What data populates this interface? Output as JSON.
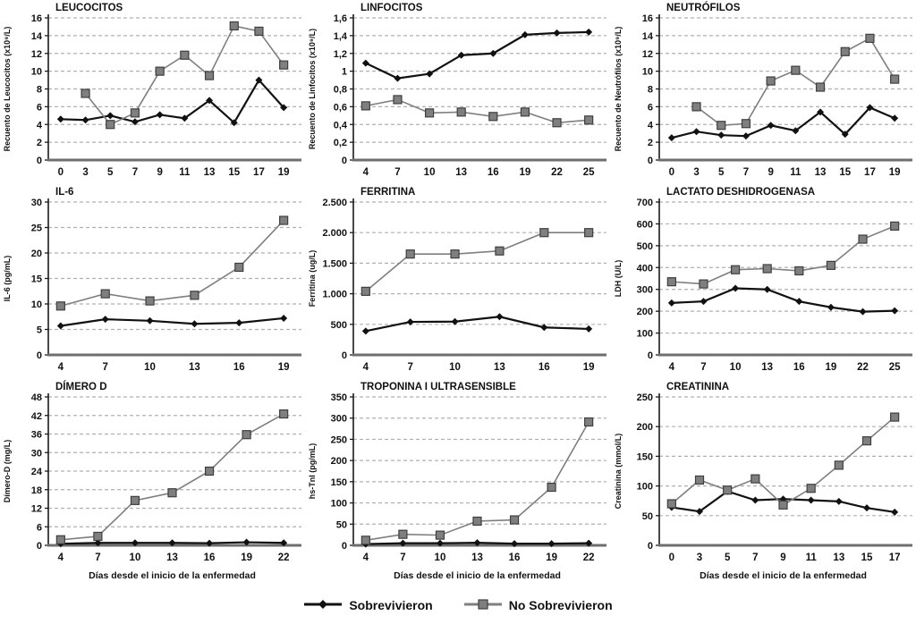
{
  "colors": {
    "survivor": "#111111",
    "nonsurvivor": "#7f7f7f",
    "nonsurvivor_edge": "#3f3f3f",
    "grid": "#b0b0b0",
    "axis": "#1a1a1a",
    "xaxis": "#6e6e6e",
    "text": "#111111"
  },
  "legend": {
    "items": [
      {
        "label": "Sobrevivieron",
        "marker": "diamond"
      },
      {
        "label": "No Sobrevivieron",
        "marker": "square"
      }
    ]
  },
  "chart_data": [
    {
      "id": "leucocitos",
      "type": "line",
      "title": "LEUCOCITOS",
      "ylabel": "Recuento de Leucocitos (x10⁹/L)",
      "xlabel": "",
      "categories": [
        "0",
        "3",
        "5",
        "7",
        "9",
        "11",
        "13",
        "15",
        "17",
        "19"
      ],
      "ylim": [
        0,
        16
      ],
      "yticks": [
        0,
        2,
        4,
        6,
        8,
        10,
        12,
        14,
        16
      ],
      "ytick_labels": [
        "0",
        "2",
        "4",
        "6",
        "8",
        "10",
        "12",
        "14",
        "16"
      ],
      "grid": true,
      "legend_position": "bottom-figure",
      "series": [
        {
          "name": "Sobrevivieron",
          "values": [
            4.6,
            4.5,
            5.0,
            4.3,
            5.1,
            4.7,
            6.7,
            4.2,
            9.0,
            5.9
          ]
        },
        {
          "name": "No Sobrevivieron",
          "values": [
            null,
            7.5,
            4.0,
            5.3,
            10.0,
            11.8,
            9.5,
            15.1,
            14.5,
            10.7
          ]
        }
      ]
    },
    {
      "id": "linfocitos",
      "type": "line",
      "title": "LINFOCITOS",
      "ylabel": "Recuento de Linfocitos (x10⁹/L)",
      "xlabel": "",
      "categories": [
        "4",
        "7",
        "10",
        "13",
        "16",
        "19",
        "22",
        "25"
      ],
      "ylim": [
        0,
        1.6
      ],
      "yticks": [
        0,
        0.2,
        0.4,
        0.6,
        0.8,
        1,
        1.2,
        1.4,
        1.6
      ],
      "ytick_labels": [
        "0",
        "0,2",
        "0,4",
        "0,6",
        "0,8",
        "1",
        "1,2",
        "1,4",
        "1,6"
      ],
      "grid": true,
      "legend_position": "bottom-figure",
      "series": [
        {
          "name": "Sobrevivieron",
          "values": [
            1.09,
            0.92,
            0.97,
            1.18,
            1.2,
            1.41,
            1.43,
            1.44
          ]
        },
        {
          "name": "No Sobrevivieron",
          "values": [
            0.61,
            0.68,
            0.53,
            0.54,
            0.49,
            0.54,
            0.42,
            0.45
          ]
        }
      ]
    },
    {
      "id": "neutrofilos",
      "type": "line",
      "title": "NEUTRÓFILOS",
      "ylabel": "Recuento de Neutrófilos (x10⁹/L)",
      "xlabel": "",
      "categories": [
        "0",
        "3",
        "5",
        "7",
        "9",
        "11",
        "13",
        "15",
        "17",
        "19"
      ],
      "ylim": [
        0,
        16
      ],
      "yticks": [
        0,
        2,
        4,
        6,
        8,
        10,
        12,
        14,
        16
      ],
      "ytick_labels": [
        "0",
        "2",
        "4",
        "6",
        "8",
        "10",
        "12",
        "14",
        "16"
      ],
      "grid": true,
      "legend_position": "bottom-figure",
      "series": [
        {
          "name": "Sobrevivieron",
          "values": [
            2.5,
            3.2,
            2.8,
            2.7,
            3.9,
            3.3,
            5.4,
            2.9,
            5.9,
            4.7
          ]
        },
        {
          "name": "No Sobrevivieron",
          "values": [
            null,
            6.0,
            3.9,
            4.1,
            8.9,
            10.1,
            8.2,
            12.2,
            13.7,
            9.1
          ]
        }
      ]
    },
    {
      "id": "il6",
      "type": "line",
      "title": "IL-6",
      "ylabel": "IL-6 (pg/mL)",
      "xlabel": "",
      "categories": [
        "4",
        "7",
        "10",
        "13",
        "16",
        "19"
      ],
      "ylim": [
        0,
        30
      ],
      "yticks": [
        0,
        5,
        10,
        15,
        20,
        25,
        30
      ],
      "ytick_labels": [
        "0",
        "5",
        "10",
        "15",
        "20",
        "25",
        "30"
      ],
      "grid": true,
      "legend_position": "bottom-figure",
      "series": [
        {
          "name": "Sobrevivieron",
          "values": [
            5.7,
            7.0,
            6.7,
            6.1,
            6.3,
            7.2
          ]
        },
        {
          "name": "No Sobrevivieron",
          "values": [
            9.6,
            12.0,
            10.6,
            11.7,
            17.2,
            26.4
          ]
        }
      ]
    },
    {
      "id": "ferritina",
      "type": "line",
      "title": "FERRITINA",
      "ylabel": "Ferritina (ug/L)",
      "xlabel": "",
      "categories": [
        "4",
        "7",
        "10",
        "13",
        "16",
        "19"
      ],
      "ylim": [
        0,
        2500
      ],
      "yticks": [
        0,
        500,
        1000,
        1500,
        2000,
        2500
      ],
      "ytick_labels": [
        "0",
        "500",
        "1.000",
        "1.500",
        "2.000",
        "2.500"
      ],
      "grid": true,
      "legend_position": "bottom-figure",
      "series": [
        {
          "name": "Sobrevivieron",
          "values": [
            390,
            540,
            545,
            625,
            450,
            425
          ]
        },
        {
          "name": "No Sobrevivieron",
          "values": [
            1040,
            1650,
            1650,
            1700,
            2000,
            2000
          ]
        }
      ]
    },
    {
      "id": "ldh",
      "type": "line",
      "title": "LACTATO DESHIDROGENASA",
      "ylabel": "LDH (U/L)",
      "xlabel": "",
      "categories": [
        "4",
        "7",
        "10",
        "13",
        "16",
        "19",
        "22",
        "25"
      ],
      "ylim": [
        0,
        700
      ],
      "yticks": [
        0,
        100,
        200,
        300,
        400,
        500,
        600,
        700
      ],
      "ytick_labels": [
        "0",
        "100",
        "200",
        "300",
        "400",
        "500",
        "600",
        "700"
      ],
      "grid": true,
      "legend_position": "bottom-figure",
      "series": [
        {
          "name": "Sobrevivieron",
          "values": [
            238,
            245,
            305,
            300,
            245,
            218,
            198,
            202
          ]
        },
        {
          "name": "No Sobrevivieron",
          "values": [
            335,
            325,
            390,
            395,
            385,
            410,
            530,
            590
          ]
        }
      ]
    },
    {
      "id": "dimero-d",
      "type": "line",
      "title": "DÍMERO D",
      "ylabel": "Dímero-D (mg/L)",
      "xlabel": "Días desde el inicio de la enfermedad",
      "categories": [
        "4",
        "7",
        "10",
        "13",
        "16",
        "19",
        "22"
      ],
      "ylim": [
        0,
        48
      ],
      "yticks": [
        0,
        6,
        12,
        18,
        24,
        30,
        36,
        42,
        48
      ],
      "ytick_labels": [
        "0",
        "6",
        "12",
        "18",
        "24",
        "30",
        "36",
        "42",
        "48"
      ],
      "grid": true,
      "legend_position": "bottom-figure",
      "series": [
        {
          "name": "Sobrevivieron",
          "values": [
            0.5,
            0.8,
            0.8,
            0.8,
            0.7,
            1.0,
            0.8
          ]
        },
        {
          "name": "No Sobrevivieron",
          "values": [
            1.8,
            2.9,
            14.5,
            17.0,
            24.0,
            35.8,
            42.5
          ]
        }
      ]
    },
    {
      "id": "troponina",
      "type": "line",
      "title": "TROPONINA  I ULTRASENSIBLE",
      "ylabel": "hs-TnI (pg/mL)",
      "xlabel": "Días desde el inicio de la enfermedad",
      "categories": [
        "4",
        "7",
        "10",
        "13",
        "16",
        "19",
        "22"
      ],
      "ylim": [
        0,
        350
      ],
      "yticks": [
        0,
        50,
        100,
        150,
        200,
        250,
        300,
        350
      ],
      "ytick_labels": [
        "0",
        "50",
        "100",
        "150",
        "200",
        "250",
        "300",
        "350"
      ],
      "grid": true,
      "legend_position": "bottom-figure",
      "series": [
        {
          "name": "Sobrevivieron",
          "values": [
            3,
            5,
            5,
            6,
            4,
            4,
            5
          ]
        },
        {
          "name": "No Sobrevivieron",
          "values": [
            12,
            26,
            24,
            57,
            60,
            137,
            291
          ]
        }
      ]
    },
    {
      "id": "creatinina",
      "type": "line",
      "title": "CREATININA",
      "ylabel": "Creatinina (mmol/L)",
      "xlabel": "Días desde el inicio de la enfermedad",
      "categories": [
        "0",
        "3",
        "5",
        "7",
        "9",
        "11",
        "13",
        "15",
        "17"
      ],
      "ylim": [
        0,
        250
      ],
      "yticks": [
        0,
        50,
        100,
        150,
        200,
        250
      ],
      "ytick_labels": [
        "0",
        "50",
        "100",
        "150",
        "200",
        "250"
      ],
      "grid": true,
      "legend_position": "bottom-figure",
      "series": [
        {
          "name": "Sobrevivieron",
          "values": [
            64,
            57,
            91,
            76,
            78,
            76,
            74,
            63,
            56
          ]
        },
        {
          "name": "No Sobrevivieron",
          "values": [
            70,
            110,
            93,
            112,
            68,
            96,
            135,
            176,
            216
          ]
        }
      ]
    }
  ]
}
